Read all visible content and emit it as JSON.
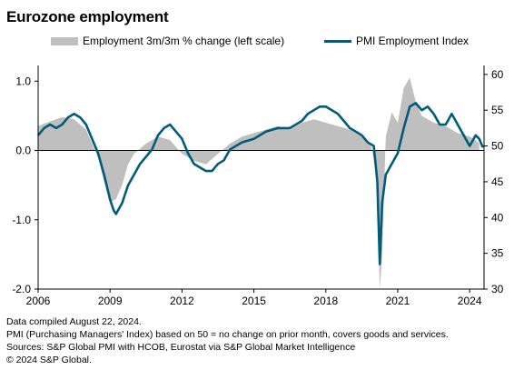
{
  "title": "Eurozone employment",
  "chart_data": {
    "type": "line",
    "legend_placement": "top",
    "x_range": [
      2006,
      2024.6
    ],
    "x_ticks": [
      2006,
      2009,
      2012,
      2015,
      2018,
      2021,
      2024
    ],
    "left_axis": {
      "ylim": [
        -2.0,
        1.2
      ],
      "ticks": [
        -2.0,
        -1.0,
        0.0,
        1.0
      ],
      "tick_labels": [
        "-2.0",
        "-1.0",
        "0.0",
        "1.0"
      ]
    },
    "right_axis": {
      "ylim": [
        30,
        61
      ],
      "ticks": [
        30,
        35,
        40,
        45,
        50,
        55,
        60
      ]
    },
    "grid": false,
    "series": [
      {
        "name": "Employment 3m/3m % change (left scale)",
        "type": "area",
        "axis": "left",
        "color": "#bfbfbf",
        "x": [
          2006.0,
          2006.5,
          2007.0,
          2007.5,
          2008.0,
          2008.5,
          2008.75,
          2009.0,
          2009.25,
          2009.5,
          2009.75,
          2010.0,
          2010.5,
          2011.0,
          2011.5,
          2012.0,
          2012.5,
          2013.0,
          2013.5,
          2014.0,
          2014.5,
          2015.0,
          2015.5,
          2016.0,
          2016.5,
          2017.0,
          2017.5,
          2018.0,
          2018.5,
          2019.0,
          2019.5,
          2019.9,
          2020.1,
          2020.25,
          2020.35,
          2020.5,
          2020.75,
          2021.0,
          2021.25,
          2021.5,
          2021.75,
          2022.0,
          2022.5,
          2023.0,
          2023.5,
          2024.0,
          2024.25,
          2024.4
        ],
        "values": [
          0.35,
          0.42,
          0.48,
          0.45,
          0.3,
          -0.1,
          -0.45,
          -0.75,
          -0.7,
          -0.5,
          -0.2,
          -0.05,
          0.1,
          0.2,
          0.15,
          -0.05,
          -0.15,
          -0.2,
          -0.05,
          0.1,
          0.2,
          0.25,
          0.3,
          0.35,
          0.3,
          0.4,
          0.45,
          0.4,
          0.35,
          0.3,
          0.2,
          0.05,
          -0.3,
          -2.0,
          -1.5,
          0.2,
          0.55,
          0.4,
          0.9,
          1.05,
          0.7,
          0.5,
          0.4,
          0.35,
          0.25,
          0.2,
          0.15,
          0.1
        ]
      },
      {
        "name": "PMI Employment Index",
        "type": "line",
        "axis": "right",
        "color": "#005c7a",
        "x": [
          2006.0,
          2006.25,
          2006.5,
          2006.75,
          2007.0,
          2007.25,
          2007.5,
          2007.75,
          2008.0,
          2008.25,
          2008.5,
          2008.75,
          2009.0,
          2009.15,
          2009.25,
          2009.5,
          2009.75,
          2010.0,
          2010.25,
          2010.5,
          2010.75,
          2011.0,
          2011.25,
          2011.5,
          2011.75,
          2012.0,
          2012.25,
          2012.5,
          2012.75,
          2013.0,
          2013.25,
          2013.5,
          2013.75,
          2014.0,
          2014.5,
          2015.0,
          2015.5,
          2016.0,
          2016.5,
          2017.0,
          2017.25,
          2017.5,
          2017.75,
          2018.0,
          2018.25,
          2018.5,
          2018.75,
          2019.0,
          2019.25,
          2019.5,
          2019.75,
          2020.0,
          2020.15,
          2020.25,
          2020.35,
          2020.5,
          2020.75,
          2021.0,
          2021.25,
          2021.5,
          2021.75,
          2022.0,
          2022.25,
          2022.5,
          2022.75,
          2023.0,
          2023.25,
          2023.5,
          2023.75,
          2024.0,
          2024.25,
          2024.4,
          2024.55
        ],
        "values": [
          51.5,
          52.5,
          53.0,
          52.5,
          53.0,
          54.0,
          54.5,
          54.0,
          53.0,
          51.0,
          49.0,
          46.0,
          42.5,
          41.0,
          40.5,
          42.0,
          44.5,
          46.0,
          47.5,
          48.5,
          49.5,
          51.5,
          52.5,
          53.0,
          52.0,
          51.0,
          49.0,
          47.5,
          47.0,
          46.5,
          46.5,
          47.5,
          48.0,
          49.5,
          50.5,
          51.0,
          52.0,
          52.5,
          52.5,
          53.5,
          54.5,
          55.0,
          55.5,
          55.5,
          55.0,
          54.5,
          53.5,
          52.5,
          52.0,
          51.5,
          50.5,
          50.0,
          45.0,
          33.5,
          42.0,
          46.0,
          47.5,
          49.0,
          52.5,
          55.5,
          56.0,
          55.0,
          55.5,
          54.5,
          53.0,
          53.0,
          54.5,
          53.0,
          51.5,
          50.0,
          51.5,
          51.0,
          49.8
        ]
      }
    ]
  },
  "footnotes": [
    "Data compiled August 22, 2024.",
    "PMI (Purchasing Managers' Index) based on 50 = no change on prior month, covers goods and services.",
    "Sources: S&P Global PMI with HCOB, Eurostat via S&P Global Market Intelligence",
    "© 2024 S&P Global."
  ]
}
